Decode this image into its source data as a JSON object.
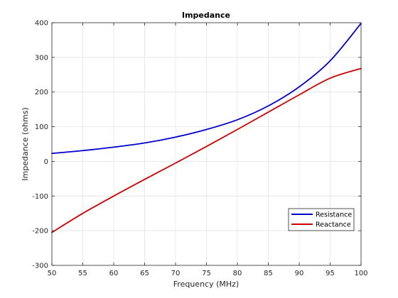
{
  "chart_data": {
    "type": "line",
    "title": "Impedance",
    "xlabel": "Frequency (MHz)",
    "ylabel": "Impedance (ohms)",
    "xlim": [
      50,
      100
    ],
    "ylim": [
      -300,
      400
    ],
    "xticks": [
      50,
      55,
      60,
      65,
      70,
      75,
      80,
      85,
      90,
      95,
      100
    ],
    "yticks": [
      -300,
      -200,
      -100,
      0,
      100,
      200,
      300,
      400
    ],
    "grid": true,
    "legend_position": "lower-right",
    "x": [
      50,
      55,
      60,
      65,
      70,
      75,
      80,
      85,
      90,
      95,
      100
    ],
    "series": [
      {
        "name": "Resistance",
        "color": "#0000cc",
        "values": [
          23,
          31,
          41,
          53,
          70,
          92,
          120,
          160,
          215,
          290,
          398
        ]
      },
      {
        "name": "Reactance",
        "color": "#cc0000",
        "values": [
          -205,
          -150,
          -100,
          -52,
          -5,
          43,
          92,
          142,
          192,
          240,
          268
        ]
      }
    ]
  }
}
